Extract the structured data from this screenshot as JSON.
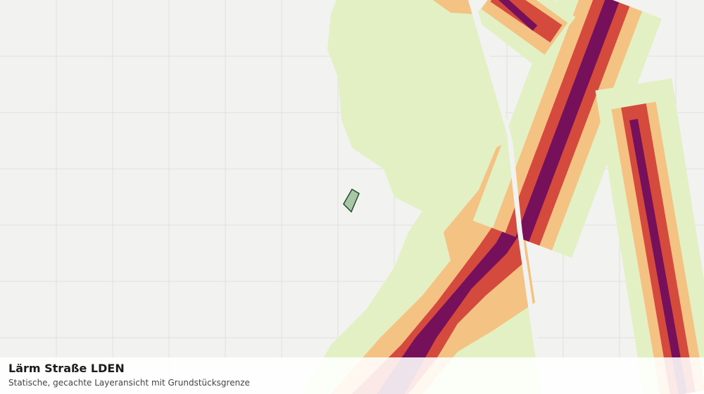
{
  "header": {
    "title": "Lärm Straße LDEN",
    "subtitle": "Statische, gecachte Layeransicht mit Grundstücksgrenze"
  }
}
